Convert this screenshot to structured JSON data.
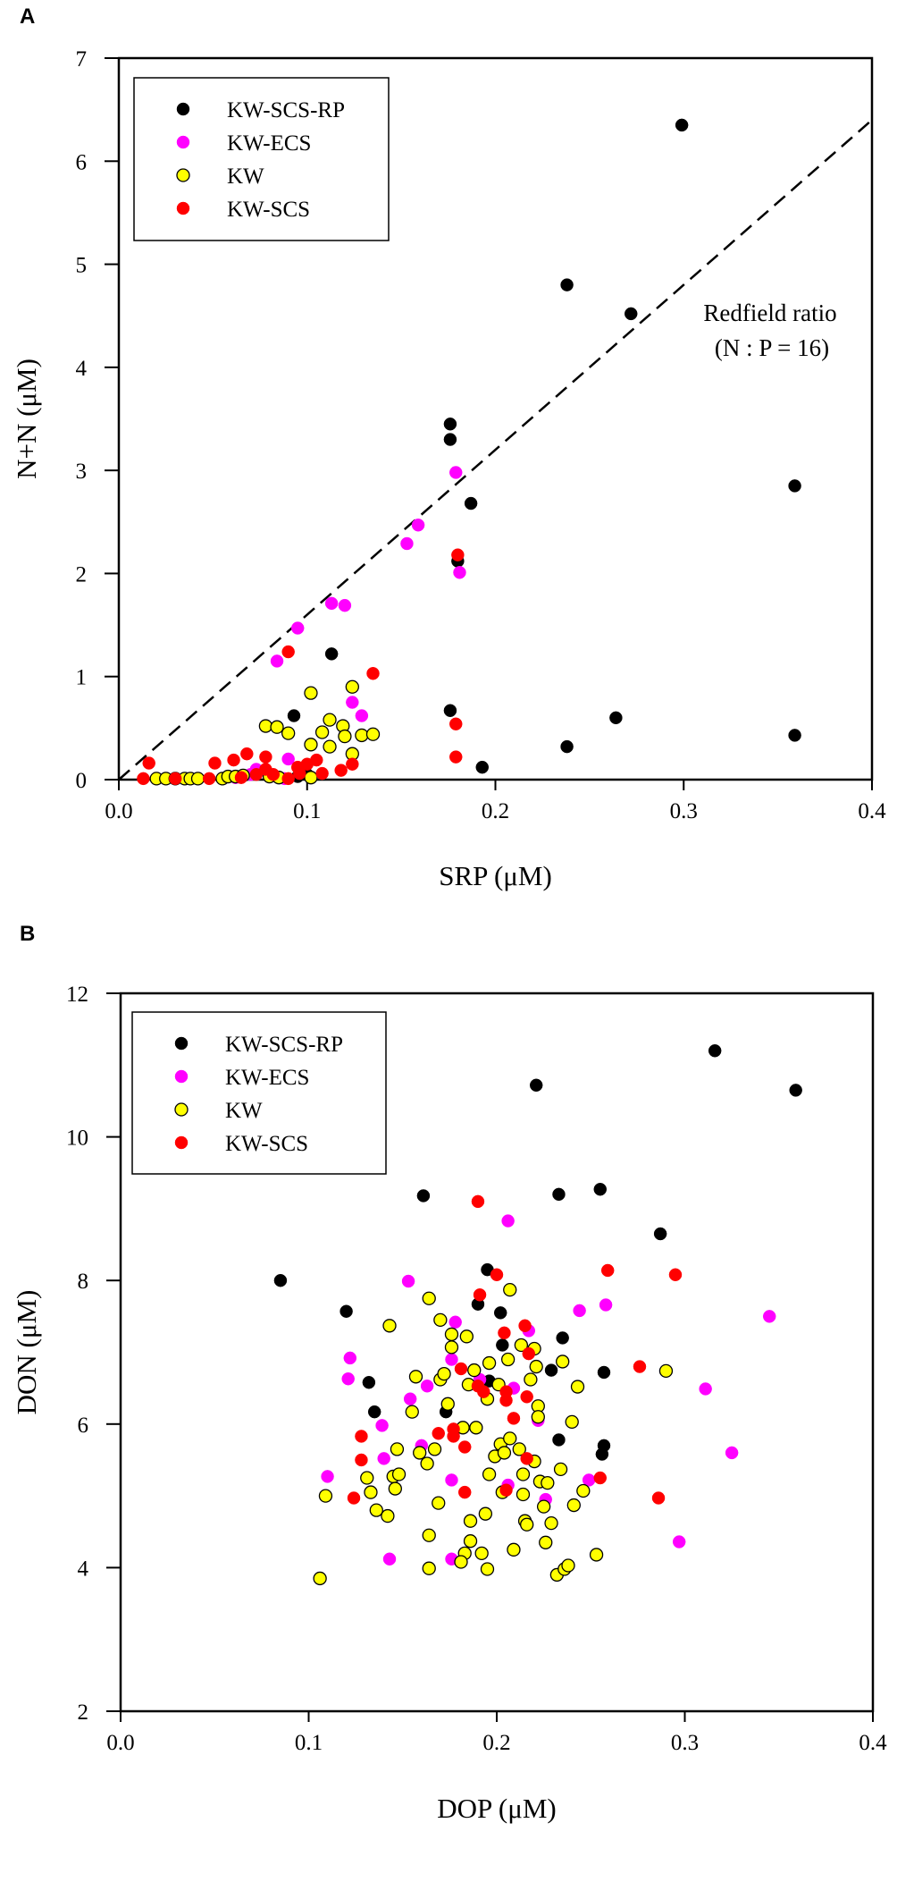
{
  "chart_data": [
    {
      "type": "scatter",
      "panel": "A",
      "xlabel": "SRP (μM)",
      "ylabel": "N+N (μM)",
      "xlim": [
        0,
        0.4
      ],
      "ylim": [
        0,
        7
      ],
      "xticks": [
        "0.0",
        "0.1",
        "0.2",
        "0.3",
        "0.4"
      ],
      "yticks": [
        "0",
        "1",
        "2",
        "3",
        "4",
        "5",
        "6",
        "7"
      ],
      "legend_position": "top-left",
      "annotation": {
        "line1": "Redfield ratio",
        "line2": "(N : P = 16)"
      },
      "reference_line": {
        "label": "Redfield ratio",
        "slope": 16,
        "intercept": 0,
        "style": "dashed"
      },
      "series": [
        {
          "name": "KW-SCS-RP",
          "color": "#000000",
          "outline": false,
          "points": [
            [
              0.299,
              6.35
            ],
            [
              0.238,
              4.8
            ],
            [
              0.272,
              4.52
            ],
            [
              0.176,
              3.45
            ],
            [
              0.176,
              3.3
            ],
            [
              0.187,
              2.68
            ],
            [
              0.359,
              2.85
            ],
            [
              0.18,
              2.12
            ],
            [
              0.113,
              1.22
            ],
            [
              0.093,
              0.62
            ],
            [
              0.176,
              0.67
            ],
            [
              0.264,
              0.6
            ],
            [
              0.238,
              0.32
            ],
            [
              0.193,
              0.12
            ],
            [
              0.359,
              0.43
            ],
            [
              0.1,
              0.05
            ],
            [
              0.095,
              0.03
            ]
          ]
        },
        {
          "name": "KW-ECS",
          "color": "#ff00ff",
          "outline": false,
          "points": [
            [
              0.179,
              2.98
            ],
            [
              0.159,
              2.47
            ],
            [
              0.153,
              2.29
            ],
            [
              0.181,
              2.01
            ],
            [
              0.113,
              1.71
            ],
            [
              0.12,
              1.69
            ],
            [
              0.095,
              1.47
            ],
            [
              0.084,
              1.15
            ],
            [
              0.124,
              0.75
            ],
            [
              0.129,
              0.62
            ],
            [
              0.09,
              0.2
            ],
            [
              0.07,
              0.05
            ],
            [
              0.073,
              0.1
            ],
            [
              0.062,
              0.02
            ],
            [
              0.088,
              0.01
            ]
          ]
        },
        {
          "name": "KW",
          "color": "#ffff00",
          "outline": true,
          "points": [
            [
              0.102,
              0.84
            ],
            [
              0.124,
              0.9
            ],
            [
              0.078,
              0.52
            ],
            [
              0.084,
              0.51
            ],
            [
              0.09,
              0.45
            ],
            [
              0.112,
              0.58
            ],
            [
              0.108,
              0.46
            ],
            [
              0.119,
              0.52
            ],
            [
              0.12,
              0.42
            ],
            [
              0.129,
              0.43
            ],
            [
              0.135,
              0.44
            ],
            [
              0.102,
              0.34
            ],
            [
              0.112,
              0.32
            ],
            [
              0.124,
              0.25
            ],
            [
              0.02,
              0.01
            ],
            [
              0.025,
              0.01
            ],
            [
              0.03,
              0.01
            ],
            [
              0.035,
              0.01
            ],
            [
              0.038,
              0.01
            ],
            [
              0.042,
              0.01
            ],
            [
              0.055,
              0.01
            ],
            [
              0.058,
              0.03
            ],
            [
              0.062,
              0.03
            ],
            [
              0.066,
              0.04
            ],
            [
              0.08,
              0.03
            ],
            [
              0.085,
              0.02
            ],
            [
              0.102,
              0.02
            ]
          ]
        },
        {
          "name": "KW-SCS",
          "color": "#ff0000",
          "outline": false,
          "points": [
            [
              0.18,
              2.18
            ],
            [
              0.09,
              1.24
            ],
            [
              0.135,
              1.03
            ],
            [
              0.179,
              0.54
            ],
            [
              0.179,
              0.22
            ],
            [
              0.016,
              0.16
            ],
            [
              0.013,
              0.01
            ],
            [
              0.03,
              0.01
            ],
            [
              0.048,
              0.01
            ],
            [
              0.051,
              0.16
            ],
            [
              0.061,
              0.19
            ],
            [
              0.068,
              0.25
            ],
            [
              0.065,
              0.02
            ],
            [
              0.078,
              0.22
            ],
            [
              0.078,
              0.1
            ],
            [
              0.082,
              0.05
            ],
            [
              0.09,
              0.01
            ],
            [
              0.095,
              0.12
            ],
            [
              0.1,
              0.15
            ],
            [
              0.105,
              0.19
            ],
            [
              0.108,
              0.06
            ],
            [
              0.118,
              0.09
            ],
            [
              0.124,
              0.15
            ],
            [
              0.073,
              0.05
            ],
            [
              0.096,
              0.06
            ]
          ]
        }
      ]
    },
    {
      "type": "scatter",
      "panel": "B",
      "xlabel": "DOP (μM)",
      "ylabel": "DON (μM)",
      "xlim": [
        0,
        0.4
      ],
      "ylim": [
        2,
        12
      ],
      "xticks": [
        "0.0",
        "0.1",
        "0.2",
        "0.3",
        "0.4"
      ],
      "yticks": [
        "2",
        "4",
        "6",
        "8",
        "10",
        "12"
      ],
      "legend_position": "top-left",
      "series": [
        {
          "name": "KW-SCS-RP",
          "color": "#000000",
          "outline": false,
          "points": [
            [
              0.316,
              11.2
            ],
            [
              0.359,
              10.65
            ],
            [
              0.221,
              10.72
            ],
            [
              0.161,
              9.18
            ],
            [
              0.233,
              9.2
            ],
            [
              0.255,
              9.27
            ],
            [
              0.287,
              8.65
            ],
            [
              0.085,
              8.0
            ],
            [
              0.195,
              8.15
            ],
            [
              0.19,
              7.67
            ],
            [
              0.202,
              7.55
            ],
            [
              0.12,
              7.57
            ],
            [
              0.235,
              7.2
            ],
            [
              0.203,
              7.1
            ],
            [
              0.229,
              6.75
            ],
            [
              0.257,
              6.72
            ],
            [
              0.132,
              6.58
            ],
            [
              0.135,
              6.17
            ],
            [
              0.173,
              6.17
            ],
            [
              0.233,
              5.78
            ],
            [
              0.257,
              5.7
            ],
            [
              0.256,
              5.58
            ],
            [
              0.196,
              6.6
            ]
          ]
        },
        {
          "name": "KW-ECS",
          "color": "#ff00ff",
          "outline": false,
          "points": [
            [
              0.206,
              8.83
            ],
            [
              0.153,
              7.99
            ],
            [
              0.244,
              7.58
            ],
            [
              0.258,
              7.66
            ],
            [
              0.345,
              7.5
            ],
            [
              0.178,
              7.42
            ],
            [
              0.122,
              6.92
            ],
            [
              0.121,
              6.63
            ],
            [
              0.163,
              6.53
            ],
            [
              0.154,
              6.35
            ],
            [
              0.176,
              6.9
            ],
            [
              0.191,
              6.62
            ],
            [
              0.209,
              6.5
            ],
            [
              0.311,
              6.49
            ],
            [
              0.139,
              5.98
            ],
            [
              0.325,
              5.6
            ],
            [
              0.14,
              5.52
            ],
            [
              0.16,
              5.7
            ],
            [
              0.11,
              5.27
            ],
            [
              0.176,
              5.22
            ],
            [
              0.206,
              5.15
            ],
            [
              0.249,
              5.22
            ],
            [
              0.226,
              4.95
            ],
            [
              0.297,
              4.36
            ],
            [
              0.143,
              4.12
            ],
            [
              0.176,
              4.12
            ],
            [
              0.217,
              7.3
            ],
            [
              0.222,
              6.05
            ]
          ]
        },
        {
          "name": "KW",
          "color": "#ffff00",
          "outline": true,
          "points": [
            [
              0.106,
              3.85
            ],
            [
              0.109,
              5.0
            ],
            [
              0.131,
              5.25
            ],
            [
              0.133,
              5.05
            ],
            [
              0.136,
              4.8
            ],
            [
              0.142,
              4.72
            ],
            [
              0.143,
              7.37
            ],
            [
              0.145,
              5.27
            ],
            [
              0.146,
              5.1
            ],
            [
              0.147,
              5.65
            ],
            [
              0.148,
              5.3
            ],
            [
              0.155,
              6.17
            ],
            [
              0.157,
              6.66
            ],
            [
              0.159,
              5.6
            ],
            [
              0.163,
              5.45
            ],
            [
              0.164,
              4.45
            ],
            [
              0.164,
              3.99
            ],
            [
              0.164,
              7.75
            ],
            [
              0.167,
              5.65
            ],
            [
              0.169,
              4.9
            ],
            [
              0.17,
              7.45
            ],
            [
              0.17,
              6.62
            ],
            [
              0.172,
              6.7
            ],
            [
              0.174,
              6.28
            ],
            [
              0.176,
              7.25
            ],
            [
              0.176,
              7.07
            ],
            [
              0.184,
              7.22
            ],
            [
              0.182,
              5.95
            ],
            [
              0.185,
              6.55
            ],
            [
              0.186,
              4.65
            ],
            [
              0.186,
              4.37
            ],
            [
              0.183,
              4.2
            ],
            [
              0.181,
              4.08
            ],
            [
              0.188,
              6.75
            ],
            [
              0.189,
              5.95
            ],
            [
              0.192,
              4.2
            ],
            [
              0.194,
              4.75
            ],
            [
              0.195,
              3.98
            ],
            [
              0.196,
              6.85
            ],
            [
              0.196,
              5.3
            ],
            [
              0.199,
              5.55
            ],
            [
              0.201,
              6.55
            ],
            [
              0.202,
              5.72
            ],
            [
              0.203,
              5.05
            ],
            [
              0.204,
              5.6
            ],
            [
              0.206,
              6.9
            ],
            [
              0.207,
              7.87
            ],
            [
              0.207,
              5.8
            ],
            [
              0.209,
              4.25
            ],
            [
              0.212,
              5.65
            ],
            [
              0.213,
              7.1
            ],
            [
              0.214,
              5.3
            ],
            [
              0.214,
              5.02
            ],
            [
              0.215,
              4.65
            ],
            [
              0.216,
              4.6
            ],
            [
              0.218,
              6.62
            ],
            [
              0.22,
              7.05
            ],
            [
              0.22,
              5.48
            ],
            [
              0.221,
              6.8
            ],
            [
              0.222,
              6.25
            ],
            [
              0.222,
              6.1
            ],
            [
              0.223,
              5.2
            ],
            [
              0.225,
              4.85
            ],
            [
              0.226,
              4.35
            ],
            [
              0.227,
              5.18
            ],
            [
              0.229,
              4.62
            ],
            [
              0.232,
              3.9
            ],
            [
              0.234,
              5.37
            ],
            [
              0.235,
              6.87
            ],
            [
              0.236,
              3.98
            ],
            [
              0.238,
              4.03
            ],
            [
              0.24,
              6.03
            ],
            [
              0.241,
              4.87
            ],
            [
              0.243,
              6.52
            ],
            [
              0.246,
              5.07
            ],
            [
              0.253,
              4.18
            ],
            [
              0.29,
              6.74
            ],
            [
              0.195,
              6.35
            ]
          ]
        },
        {
          "name": "KW-SCS",
          "color": "#ff0000",
          "outline": false,
          "points": [
            [
              0.19,
              9.1
            ],
            [
              0.2,
              8.08
            ],
            [
              0.259,
              8.14
            ],
            [
              0.295,
              8.08
            ],
            [
              0.191,
              7.8
            ],
            [
              0.215,
              7.37
            ],
            [
              0.204,
              7.27
            ],
            [
              0.217,
              6.98
            ],
            [
              0.181,
              6.77
            ],
            [
              0.276,
              6.8
            ],
            [
              0.19,
              6.53
            ],
            [
              0.193,
              6.45
            ],
            [
              0.205,
              6.45
            ],
            [
              0.205,
              6.33
            ],
            [
              0.216,
              6.38
            ],
            [
              0.209,
              6.08
            ],
            [
              0.128,
              5.83
            ],
            [
              0.169,
              5.87
            ],
            [
              0.177,
              5.93
            ],
            [
              0.177,
              5.83
            ],
            [
              0.183,
              5.68
            ],
            [
              0.216,
              5.52
            ],
            [
              0.128,
              5.5
            ],
            [
              0.124,
              4.97
            ],
            [
              0.183,
              5.05
            ],
            [
              0.205,
              5.08
            ],
            [
              0.255,
              5.25
            ],
            [
              0.286,
              4.97
            ]
          ]
        }
      ]
    }
  ]
}
